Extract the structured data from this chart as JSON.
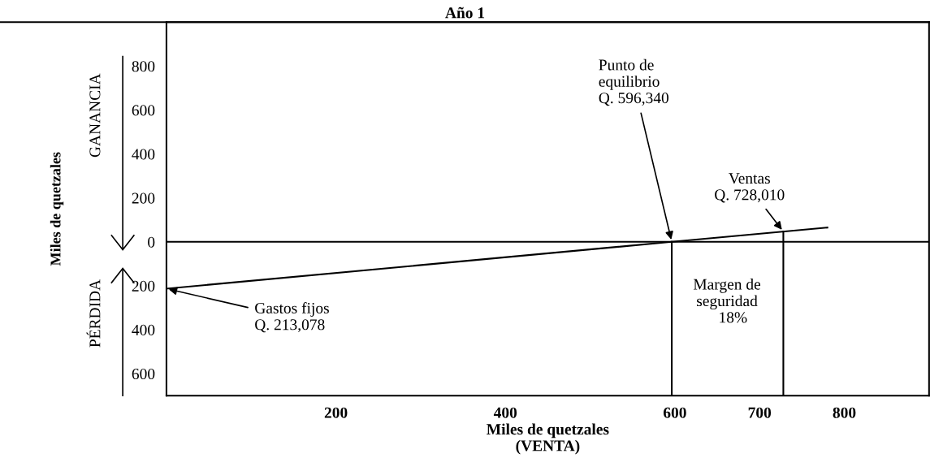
{
  "chart_data": {
    "type": "line",
    "title": "Año 1",
    "xlabel": "Miles de quetzales\n(VENTA)",
    "ylabel": "Miles de quetzales",
    "series": [
      {
        "color": "#000000",
        "x": [
          0,
          596.34,
          780
        ],
        "values": [
          -213,
          0,
          65
        ]
      },
      {
        "color": "#000000",
        "x": [
          596.34,
          596.34
        ],
        "values": [
          -700,
          0
        ]
      },
      {
        "color": "#000000",
        "x": [
          728.01,
          728.01
        ],
        "values": [
          -700,
          47
        ]
      }
    ],
    "ref_lines": [
      {
        "axis": "y",
        "value": 0,
        "color": "#000000"
      }
    ],
    "xlim": [
      0,
      900
    ],
    "xticks": [
      200,
      400,
      600,
      700,
      800
    ],
    "ylim": [
      -700,
      1000
    ],
    "yticks": [
      800,
      600,
      400,
      200,
      0,
      {
        "value": -200,
        "label": "200"
      },
      {
        "value": -400,
        "label": "400"
      },
      {
        "value": -600,
        "label": "600"
      }
    ],
    "annotations": [
      {
        "text": "Gastos fijos\nQ. 213,078",
        "x": 0,
        "y": -213
      },
      {
        "text": "Punto de\nequilibrio\nQ. 596,340",
        "x": 596.34,
        "y": 0
      },
      {
        "text": "Ventas\nQ. 728,010",
        "x": 728.01,
        "y": 47
      },
      "Margen de\nseguridad\n   18%",
      "GANANCIA",
      "PÉRDIDA"
    ],
    "grid": false,
    "legend": false,
    "marker": "none",
    "line_style": "solid"
  }
}
